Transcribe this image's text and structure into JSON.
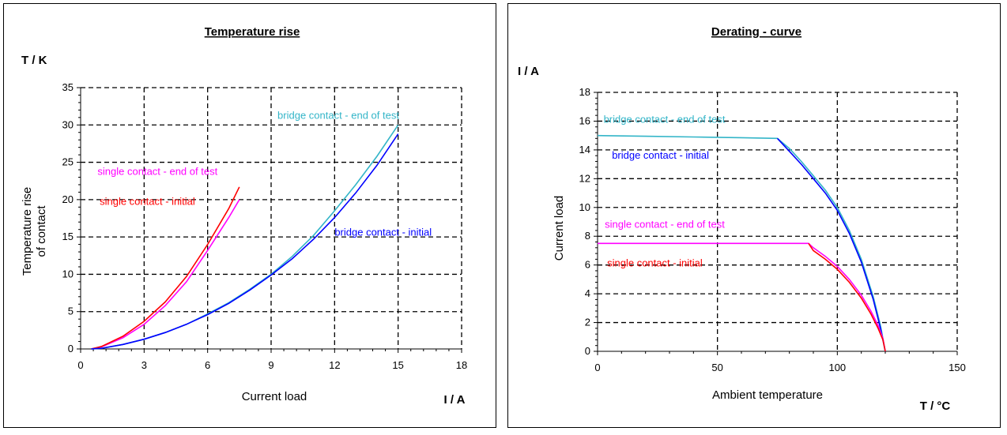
{
  "chart_data": [
    {
      "type": "line",
      "title": "Temperature rise",
      "y_unit": "T / K",
      "ylabel_lines": [
        "Temperature rise",
        "of contact"
      ],
      "xlabel": "Current load",
      "x_unit": "I / A",
      "xlim": [
        0,
        18
      ],
      "ylim": [
        0,
        35
      ],
      "x_ticks": [
        "0",
        "3",
        "6",
        "9",
        "12",
        "15",
        "18"
      ],
      "y_ticks": [
        "0",
        "5",
        "10",
        "15",
        "20",
        "25",
        "30",
        "35"
      ],
      "grid": true,
      "series": [
        {
          "name": "single contact - end of test",
          "color": "#ff00ff",
          "x": [
            0.5,
            1,
            2,
            3,
            4,
            5,
            6,
            7,
            7.5
          ],
          "y": [
            0,
            0.3,
            1.5,
            3.3,
            5.8,
            9.0,
            13.2,
            17.6,
            20.0
          ]
        },
        {
          "name": "single contact - initial",
          "color": "#ff0000",
          "x": [
            0.5,
            1,
            2,
            3,
            4,
            5,
            6,
            7,
            7.5
          ],
          "y": [
            0,
            0.35,
            1.7,
            3.7,
            6.3,
            9.7,
            14.0,
            18.8,
            21.7
          ]
        },
        {
          "name": "bridge contact - end of test",
          "color": "#33b5c8",
          "x": [
            0.5,
            1,
            2,
            3,
            4,
            5,
            6,
            7,
            8,
            9,
            10,
            11,
            12,
            13,
            14,
            15
          ],
          "y": [
            0,
            0.1,
            0.6,
            1.3,
            2.2,
            3.3,
            4.7,
            6.2,
            8.0,
            10.0,
            12.4,
            15.2,
            18.5,
            22.0,
            25.8,
            30.0
          ]
        },
        {
          "name": "bridge contact - initial",
          "color": "#0000ff",
          "x": [
            0.5,
            1,
            2,
            3,
            4,
            5,
            6,
            7,
            8,
            9,
            10,
            11,
            12,
            13,
            14,
            15
          ],
          "y": [
            0,
            0.1,
            0.6,
            1.3,
            2.2,
            3.3,
            4.6,
            6.1,
            7.9,
            9.9,
            12.1,
            14.7,
            17.6,
            20.9,
            24.6,
            28.8
          ]
        }
      ],
      "annotations": [
        {
          "text": "bridge contact - end of test",
          "color": "#33b5c8",
          "x": 9.3,
          "y": 30.8
        },
        {
          "text": "single contact - end of test",
          "color": "#ff00ff",
          "x": 0.8,
          "y": 23.3
        },
        {
          "text": "single contact - initial",
          "color": "#ff0000",
          "x": 0.9,
          "y": 19.3
        },
        {
          "text": "bridge contact - initial",
          "color": "#0000ff",
          "x": 12.0,
          "y": 15.2
        }
      ]
    },
    {
      "type": "line",
      "title": "Derating - curve",
      "y_unit": "I / A",
      "ylabel_lines": [
        "Current load"
      ],
      "xlabel": "Ambient temperature",
      "x_unit": "T / °C",
      "xlim": [
        0,
        150
      ],
      "ylim": [
        0,
        18
      ],
      "x_ticks": [
        "0",
        "50",
        "100",
        "150"
      ],
      "y_ticks": [
        "0",
        "2",
        "4",
        "6",
        "8",
        "10",
        "12",
        "14",
        "16",
        "18"
      ],
      "grid": true,
      "series": [
        {
          "name": "bridge contact - end of test",
          "color": "#33b5c8",
          "x": [
            0,
            20,
            40,
            60,
            75,
            80,
            85,
            90,
            95,
            100,
            105,
            110,
            115,
            118,
            120
          ],
          "y": [
            15,
            14.95,
            14.9,
            14.85,
            14.8,
            14.1,
            13.2,
            12.2,
            11.2,
            10.0,
            8.4,
            6.4,
            3.8,
            1.8,
            0
          ]
        },
        {
          "name": "bridge contact - initial",
          "color": "#0000ff",
          "x": [
            75,
            80,
            85,
            90,
            95,
            100,
            105,
            110,
            115,
            118,
            120
          ],
          "y": [
            14.8,
            13.9,
            13.0,
            12.0,
            11.0,
            9.8,
            8.2,
            6.2,
            3.6,
            1.6,
            0
          ]
        },
        {
          "name": "single contact - end of test",
          "color": "#ff00ff",
          "x": [
            0,
            30,
            60,
            88,
            90,
            95,
            100,
            105,
            110,
            114,
            117,
            119,
            120
          ],
          "y": [
            7.5,
            7.5,
            7.5,
            7.5,
            7.2,
            6.6,
            5.9,
            5.0,
            3.9,
            2.8,
            1.8,
            0.9,
            0
          ]
        },
        {
          "name": "single contact - initial",
          "color": "#ff0000",
          "x": [
            88,
            90,
            95,
            100,
            105,
            110,
            114,
            117,
            119,
            120
          ],
          "y": [
            7.5,
            7.0,
            6.4,
            5.7,
            4.8,
            3.7,
            2.6,
            1.6,
            0.8,
            0
          ]
        }
      ],
      "annotations": [
        {
          "text": "bridge contact - end of test",
          "color": "#33b5c8",
          "x": 2.5,
          "y": 15.9
        },
        {
          "text": "bridge contact - initial",
          "color": "#0000ff",
          "x": 6,
          "y": 13.4
        },
        {
          "text": "single contact - end of test",
          "color": "#ff00ff",
          "x": 3,
          "y": 8.6
        },
        {
          "text": "single contact - initial",
          "color": "#ff0000",
          "x": 4,
          "y": 5.9
        }
      ]
    }
  ]
}
